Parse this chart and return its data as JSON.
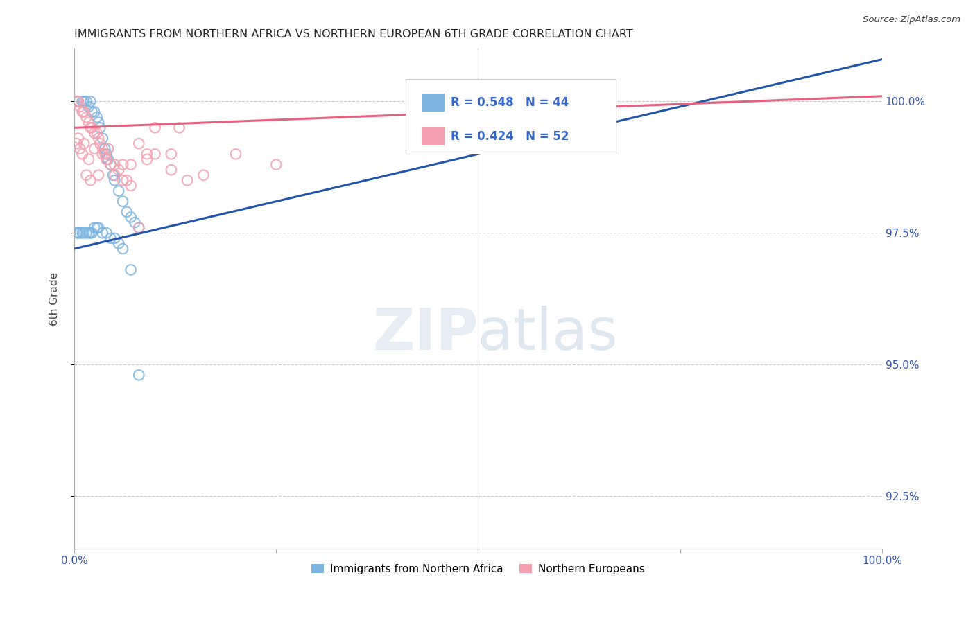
{
  "title": "IMMIGRANTS FROM NORTHERN AFRICA VS NORTHERN EUROPEAN 6TH GRADE CORRELATION CHART",
  "source": "Source: ZipAtlas.com",
  "ylabel": "6th Grade",
  "right_yticklabels": [
    "92.5%",
    "95.0%",
    "97.5%",
    "100.0%"
  ],
  "right_ytick_values": [
    92.5,
    95.0,
    97.5,
    100.0
  ],
  "legend_blue_label": "Immigrants from Northern Africa",
  "legend_pink_label": "Northern Europeans",
  "R_blue": 0.548,
  "N_blue": 44,
  "R_pink": 0.424,
  "N_pink": 52,
  "blue_color": "#7EB5E0",
  "pink_color": "#F4A0B0",
  "blue_line_color": "#2255AA",
  "pink_line_color": "#E86080",
  "blue_scatter_x": [
    0.5,
    1.0,
    1.2,
    1.5,
    1.8,
    2.0,
    2.2,
    2.5,
    2.8,
    3.0,
    3.2,
    3.5,
    3.8,
    4.0,
    4.2,
    4.5,
    4.8,
    5.0,
    5.5,
    6.0,
    6.5,
    7.0,
    7.5,
    8.0,
    0.3,
    0.5,
    0.7,
    1.0,
    1.2,
    1.5,
    1.8,
    2.0,
    2.2,
    2.5,
    2.8,
    3.0,
    3.5,
    4.0,
    4.5,
    5.0,
    5.5,
    6.0,
    7.0,
    8.0
  ],
  "blue_scatter_y": [
    100.0,
    100.0,
    100.0,
    100.0,
    99.9,
    100.0,
    99.8,
    99.8,
    99.7,
    99.6,
    99.5,
    99.3,
    99.1,
    99.0,
    98.9,
    98.8,
    98.6,
    98.5,
    98.3,
    98.1,
    97.9,
    97.8,
    97.7,
    97.6,
    97.5,
    97.5,
    97.5,
    97.5,
    97.5,
    97.5,
    97.5,
    97.5,
    97.5,
    97.6,
    97.6,
    97.6,
    97.5,
    97.5,
    97.4,
    97.4,
    97.3,
    97.2,
    96.8,
    94.8
  ],
  "pink_scatter_x": [
    0.3,
    0.5,
    0.7,
    1.0,
    1.2,
    1.5,
    1.8,
    2.0,
    2.2,
    2.5,
    2.8,
    3.0,
    3.2,
    3.5,
    3.8,
    4.0,
    4.2,
    4.5,
    5.0,
    5.5,
    6.0,
    6.5,
    7.0,
    8.0,
    9.0,
    10.0,
    12.0,
    13.0,
    20.0,
    25.0,
    58.0,
    0.3,
    0.5,
    0.7,
    1.0,
    1.2,
    1.5,
    1.8,
    2.0,
    2.5,
    3.0,
    3.5,
    4.0,
    5.0,
    6.0,
    7.0,
    8.0,
    9.0,
    10.0,
    12.0,
    14.0,
    16.0
  ],
  "pink_scatter_y": [
    100.0,
    100.0,
    99.9,
    99.8,
    99.8,
    99.7,
    99.6,
    99.5,
    99.5,
    99.4,
    99.4,
    99.3,
    99.2,
    99.1,
    99.0,
    98.9,
    99.1,
    98.8,
    98.6,
    98.7,
    98.8,
    98.5,
    98.8,
    99.2,
    99.0,
    99.0,
    98.7,
    99.5,
    99.0,
    98.8,
    99.8,
    99.2,
    99.3,
    99.1,
    99.0,
    99.2,
    98.6,
    98.9,
    98.5,
    99.1,
    98.6,
    99.0,
    98.9,
    98.8,
    98.5,
    98.4,
    97.6,
    98.9,
    99.5,
    99.0,
    98.5,
    98.6
  ],
  "xlim": [
    0.0,
    100.0
  ],
  "ylim": [
    91.5,
    101.0
  ],
  "blue_trend_x0": 0.0,
  "blue_trend_y0": 97.2,
  "blue_trend_x1": 100.0,
  "blue_trend_y1": 100.8,
  "pink_trend_x0": 0.0,
  "pink_trend_y0": 99.5,
  "pink_trend_x1": 100.0,
  "pink_trend_y1": 100.1,
  "background_color": "#ffffff",
  "grid_color": "#CCCCCC",
  "spine_color": "#AAAAAA"
}
